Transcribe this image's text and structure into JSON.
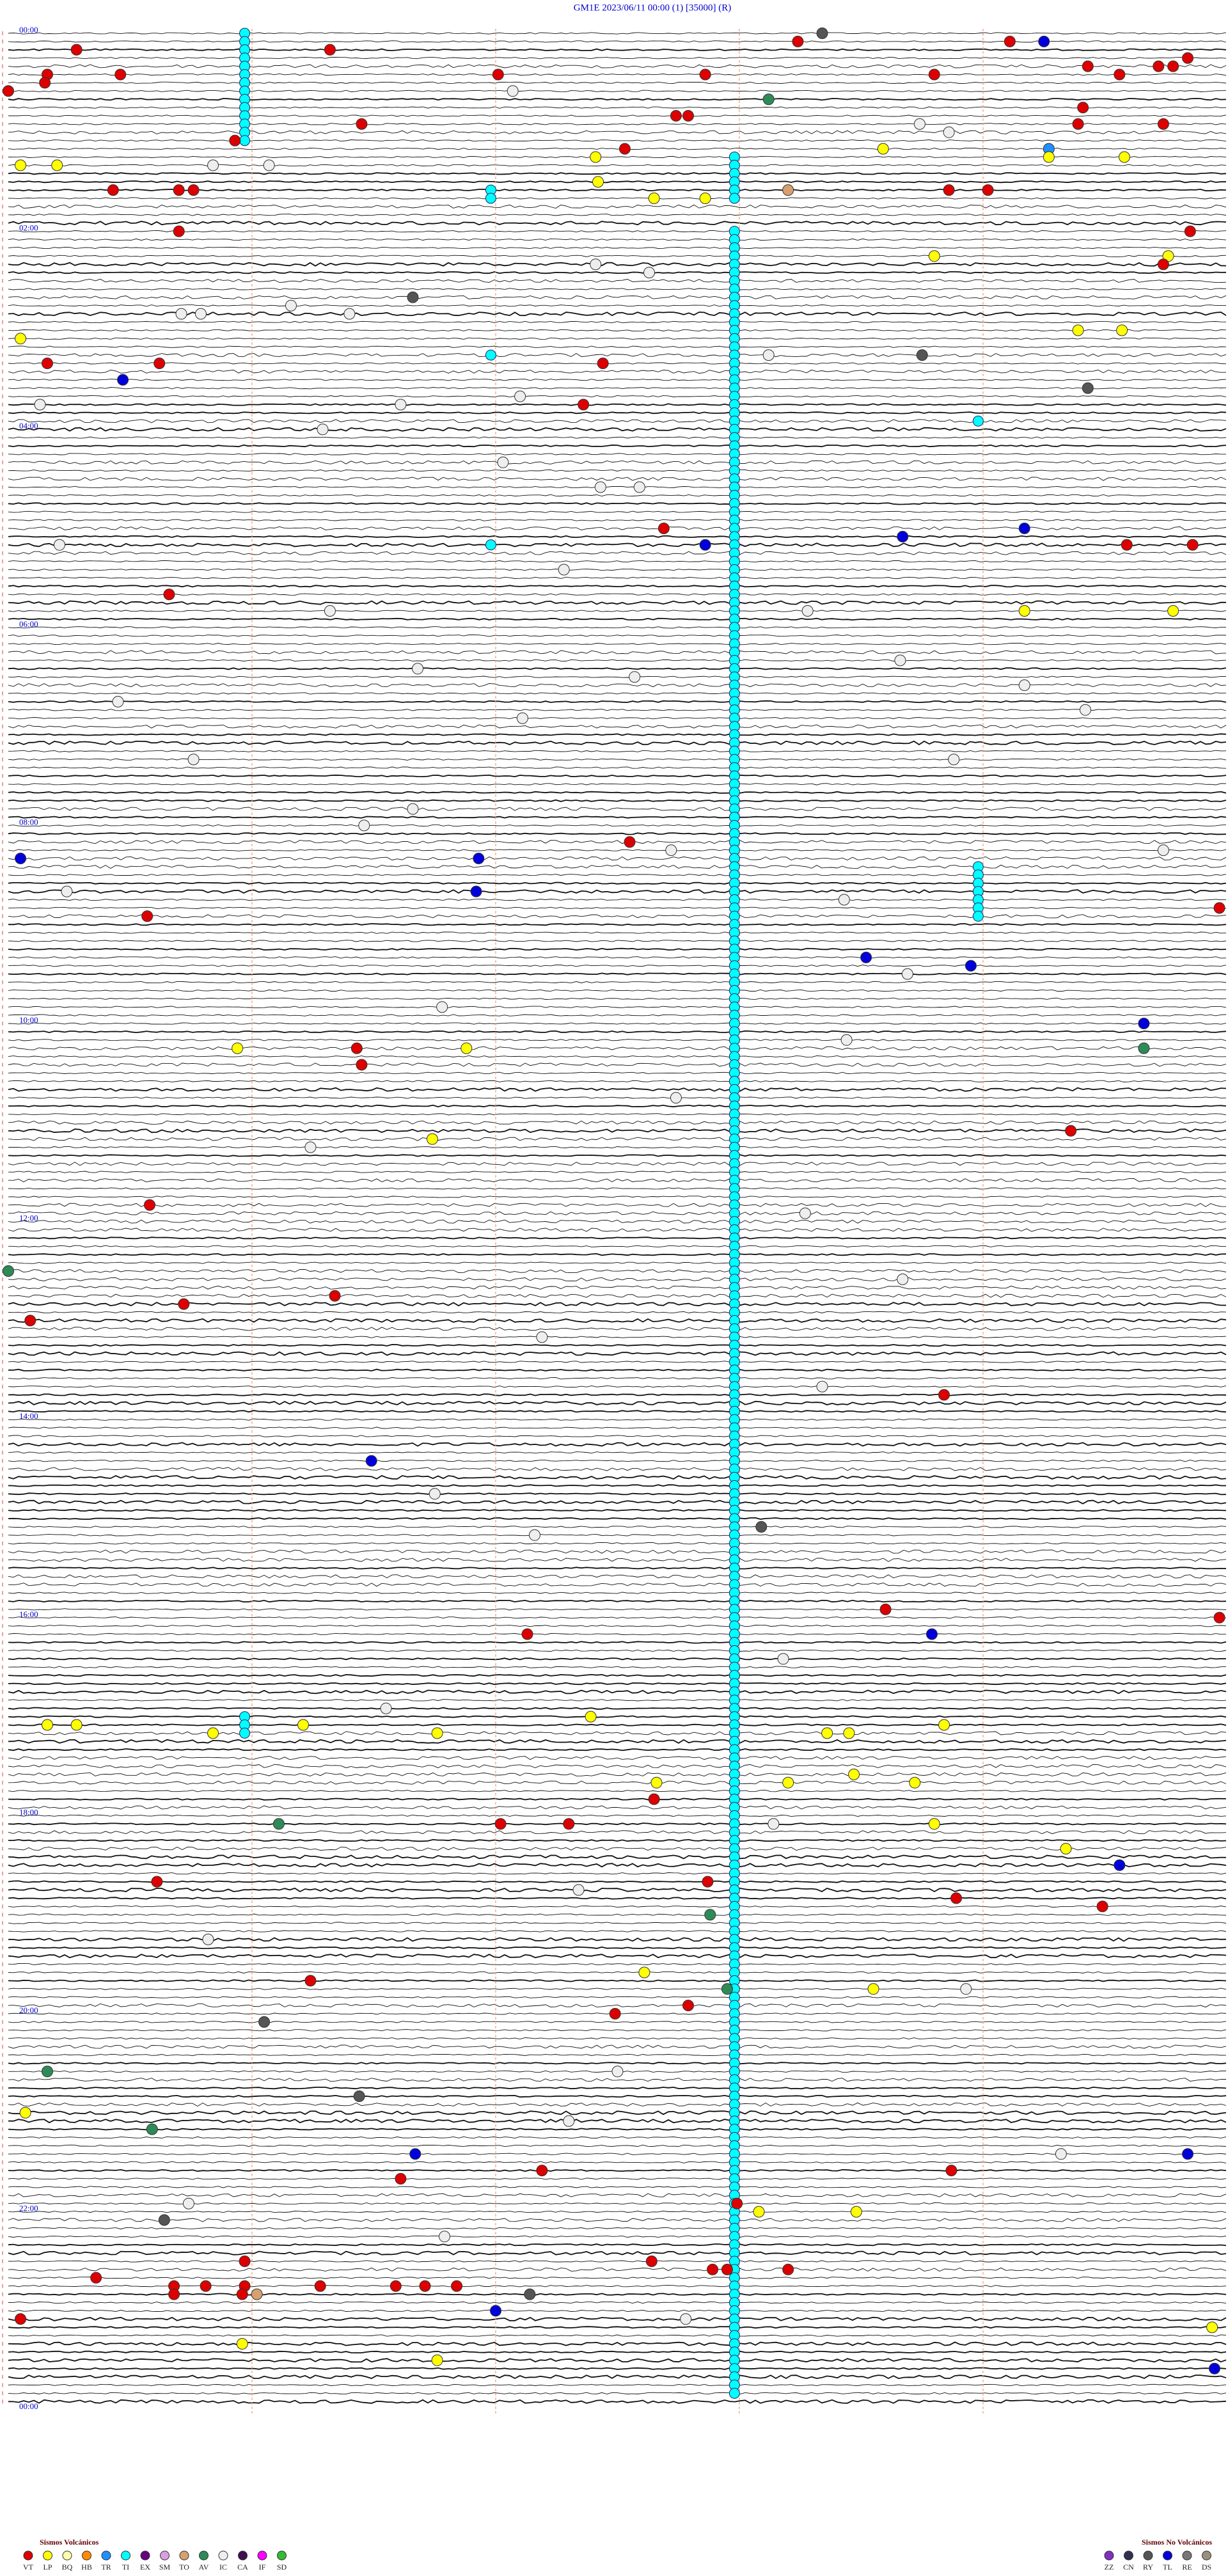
{
  "chart_data": {
    "type": "helicorder",
    "title": "GM1E     2023/06/11 00:00     (1)     [35000]   (R)",
    "hour_labels": [
      "00:00",
      "02:00",
      "04:00",
      "06:00",
      "08:00",
      "10:00",
      "12:00",
      "14:00",
      "16:00",
      "18:00",
      "20:00",
      "22:00",
      "00:00"
    ],
    "legend": {
      "volcanic": {
        "title": "Sismos Volcánicos",
        "items": [
          {
            "code": "VT",
            "color": "#dd0000"
          },
          {
            "code": "LP",
            "color": "#ffff00"
          },
          {
            "code": "BQ",
            "color": "#ffffb0"
          },
          {
            "code": "HB",
            "color": "#ff8c00"
          },
          {
            "code": "TR",
            "color": "#1e90ff"
          },
          {
            "code": "TI",
            "color": "#00ffff"
          },
          {
            "code": "EX",
            "color": "#6a0080"
          },
          {
            "code": "SM",
            "color": "#d8a0e0"
          },
          {
            "code": "TO",
            "color": "#d8a070"
          },
          {
            "code": "AV",
            "color": "#2e8b57"
          },
          {
            "code": "IC",
            "color": "#eeeeee"
          },
          {
            "code": "CA",
            "color": "#401050"
          },
          {
            "code": "IF",
            "color": "#ff00ff"
          },
          {
            "code": "SD",
            "color": "#33bb33"
          }
        ]
      },
      "non_volcanic": {
        "title": "Sismos No Volcánicos",
        "items": [
          {
            "code": "ZZ",
            "color": "#8030c0"
          },
          {
            "code": "CN",
            "color": "#303050"
          },
          {
            "code": "RY",
            "color": "#555555"
          },
          {
            "code": "TL",
            "color": "#0000dd"
          },
          {
            "code": "RE",
            "color": "#777777"
          },
          {
            "code": "DS",
            "color": "#999080"
          }
        ]
      }
    },
    "tremor": [
      [
        0,
        13,
        0.97
      ],
      [
        15,
        20,
        2.98
      ],
      [
        24,
        286,
        2.98
      ],
      [
        19,
        20,
        1.98
      ],
      [
        39,
        39,
        1.98
      ],
      [
        62,
        62,
        1.98
      ],
      [
        47,
        47,
        3.98
      ],
      [
        101,
        107,
        3.98
      ],
      [
        204,
        206,
        0.97
      ]
    ],
    "events": [
      [
        0,
        3.34,
        "RY"
      ],
      [
        1,
        3.24,
        "VT"
      ],
      [
        1,
        4.11,
        "VT"
      ],
      [
        1,
        4.25,
        "TL"
      ],
      [
        2,
        0.28,
        "VT"
      ],
      [
        2,
        1.32,
        "VT"
      ],
      [
        3,
        4.84,
        "VT"
      ],
      [
        4,
        4.43,
        "VT"
      ],
      [
        4,
        4.72,
        "VT"
      ],
      [
        4,
        4.78,
        "VT"
      ],
      [
        5,
        0.46,
        "VT"
      ],
      [
        5,
        2.01,
        "VT"
      ],
      [
        5,
        2.86,
        "VT"
      ],
      [
        5,
        3.8,
        "VT"
      ],
      [
        5,
        4.56,
        "VT"
      ],
      [
        5,
        0.16,
        "VT"
      ],
      [
        6,
        0.15,
        "VT"
      ],
      [
        7,
        0,
        "VT"
      ],
      [
        7,
        2.07,
        "IC"
      ],
      [
        8,
        3.12,
        "AV"
      ],
      [
        9,
        4.41,
        "VT"
      ],
      [
        10,
        2.74,
        "VT"
      ],
      [
        10,
        2.79,
        "VT"
      ],
      [
        11,
        1.45,
        "VT"
      ],
      [
        11,
        3.74,
        "IC"
      ],
      [
        11,
        4.39,
        "VT"
      ],
      [
        11,
        4.74,
        "VT"
      ],
      [
        12,
        3.86,
        "IC"
      ],
      [
        13,
        0.93,
        "VT"
      ],
      [
        14,
        2.53,
        "VT"
      ],
      [
        14,
        4.27,
        "TR"
      ],
      [
        15,
        2.41,
        "LP"
      ],
      [
        14,
        3.59,
        "LP"
      ],
      [
        15,
        4.27,
        "LP"
      ],
      [
        15,
        4.58,
        "LP"
      ],
      [
        16,
        0.05,
        "LP"
      ],
      [
        16,
        0.2,
        "LP"
      ],
      [
        16,
        0.84,
        "IC"
      ],
      [
        16,
        1.07,
        "IC"
      ],
      [
        18,
        2.42,
        "LP"
      ],
      [
        19,
        0.43,
        "VT"
      ],
      [
        19,
        0.7,
        "VT"
      ],
      [
        19,
        0.76,
        "VT"
      ],
      [
        19,
        3.86,
        "VT"
      ],
      [
        19,
        4.02,
        "VT"
      ],
      [
        19,
        3.2,
        "TO"
      ],
      [
        20,
        2.65,
        "LP"
      ],
      [
        20,
        2.86,
        "LP"
      ],
      [
        24,
        0.7,
        "VT"
      ],
      [
        24,
        4.85,
        "VT"
      ],
      [
        27,
        3.8,
        "LP"
      ],
      [
        27,
        4.76,
        "LP"
      ],
      [
        28,
        2.41,
        "IC"
      ],
      [
        28,
        4.74,
        "VT"
      ],
      [
        29,
        2.63,
        "IC"
      ],
      [
        32,
        1.66,
        "RY"
      ],
      [
        33,
        1.16,
        "IC"
      ],
      [
        34,
        0.71,
        "IC"
      ],
      [
        34,
        0.79,
        "IC"
      ],
      [
        34,
        1.4,
        "IC"
      ],
      [
        36,
        4.39,
        "LP"
      ],
      [
        36,
        4.57,
        "LP"
      ],
      [
        37,
        0.05,
        "LP"
      ],
      [
        39,
        3.12,
        "IC"
      ],
      [
        39,
        3.75,
        "RY"
      ],
      [
        40,
        0.16,
        "VT"
      ],
      [
        40,
        0.62,
        "VT"
      ],
      [
        40,
        2.44,
        "VT"
      ],
      [
        42,
        0.47,
        "TL"
      ],
      [
        43,
        4.43,
        "RY"
      ],
      [
        44,
        2.1,
        "IC"
      ],
      [
        45,
        2.36,
        "VT"
      ],
      [
        45,
        1.61,
        "IC"
      ],
      [
        45,
        0.13,
        "IC"
      ],
      [
        48,
        1.29,
        "IC"
      ],
      [
        52,
        2.03,
        "IC"
      ],
      [
        55,
        2.43,
        "IC"
      ],
      [
        55,
        2.59,
        "IC"
      ],
      [
        60,
        2.69,
        "VT"
      ],
      [
        61,
        3.67,
        "TL"
      ],
      [
        60,
        4.17,
        "TL"
      ],
      [
        62,
        2.86,
        "TL"
      ],
      [
        62,
        0.21,
        "IC"
      ],
      [
        62,
        4.59,
        "VT"
      ],
      [
        62,
        4.86,
        "VT"
      ],
      [
        65,
        2.28,
        "IC"
      ],
      [
        68,
        0.66,
        "VT"
      ],
      [
        70,
        4.17,
        "LP"
      ],
      [
        70,
        4.78,
        "LP"
      ],
      [
        70,
        1.32,
        "IC"
      ],
      [
        70,
        3.28,
        "IC"
      ],
      [
        76,
        3.66,
        "IC"
      ],
      [
        77,
        1.68,
        "IC"
      ],
      [
        78,
        2.57,
        "IC"
      ],
      [
        79,
        4.17,
        "IC"
      ],
      [
        81,
        0.45,
        "IC"
      ],
      [
        83,
        2.11,
        "IC"
      ],
      [
        82,
        4.42,
        "IC"
      ],
      [
        88,
        0.76,
        "IC"
      ],
      [
        88,
        3.88,
        "IC"
      ],
      [
        94,
        1.66,
        "IC"
      ],
      [
        96,
        1.46,
        "IC"
      ],
      [
        98,
        2.55,
        "VT"
      ],
      [
        99,
        2.72,
        "IC"
      ],
      [
        99,
        4.74,
        "IC"
      ],
      [
        100,
        1.93,
        "TL"
      ],
      [
        100,
        0.05,
        "TL"
      ],
      [
        104,
        1.92,
        "TL"
      ],
      [
        104,
        0.24,
        "IC"
      ],
      [
        105,
        3.43,
        "IC"
      ],
      [
        106,
        4.97,
        "VT"
      ],
      [
        107,
        0.57,
        "VT"
      ],
      [
        112,
        3.52,
        "TL"
      ],
      [
        113,
        3.95,
        "TL"
      ],
      [
        114,
        3.69,
        "IC"
      ],
      [
        118,
        1.78,
        "IC"
      ],
      [
        120,
        4.66,
        "TL"
      ],
      [
        122,
        3.44,
        "IC"
      ],
      [
        123,
        0.94,
        "LP"
      ],
      [
        123,
        1.88,
        "LP"
      ],
      [
        123,
        1.43,
        "VT"
      ],
      [
        125,
        1.45,
        "VT"
      ],
      [
        123,
        4.66,
        "AV"
      ],
      [
        129,
        2.74,
        "IC"
      ],
      [
        134,
        1.74,
        "LP"
      ],
      [
        133,
        4.36,
        "VT"
      ],
      [
        135,
        1.24,
        "IC"
      ],
      [
        142,
        0.58,
        "VT"
      ],
      [
        143,
        3.27,
        "IC"
      ],
      [
        150,
        0,
        "AV"
      ],
      [
        151,
        3.67,
        "IC"
      ],
      [
        154,
        0.72,
        "VT"
      ],
      [
        153,
        1.34,
        "VT"
      ],
      [
        156,
        0.09,
        "VT"
      ],
      [
        158,
        2.19,
        "IC"
      ],
      [
        164,
        3.34,
        "IC"
      ],
      [
        165,
        3.84,
        "VT"
      ],
      [
        173,
        1.49,
        "TL"
      ],
      [
        177,
        1.75,
        "IC"
      ],
      [
        181,
        3.09,
        "RY"
      ],
      [
        182,
        2.16,
        "IC"
      ],
      [
        194,
        2.13,
        "VT"
      ],
      [
        191,
        3.6,
        "VT"
      ],
      [
        194,
        3.79,
        "TL"
      ],
      [
        192,
        4.97,
        "VT"
      ],
      [
        197,
        3.18,
        "IC"
      ],
      [
        203,
        1.55,
        "IC"
      ],
      [
        205,
        0.16,
        "LP"
      ],
      [
        205,
        0.28,
        "LP"
      ],
      [
        206,
        0.84,
        "LP"
      ],
      [
        205,
        1.21,
        "LP"
      ],
      [
        206,
        1.76,
        "LP"
      ],
      [
        204,
        2.39,
        "LP"
      ],
      [
        206,
        3.36,
        "LP"
      ],
      [
        206,
        3.45,
        "LP"
      ],
      [
        205,
        3.84,
        "LP"
      ],
      [
        212,
        2.66,
        "LP"
      ],
      [
        212,
        3.2,
        "LP"
      ],
      [
        211,
        3.47,
        "LP"
      ],
      [
        212,
        3.72,
        "LP"
      ],
      [
        214,
        2.65,
        "VT"
      ],
      [
        217,
        1.11,
        "AV"
      ],
      [
        217,
        2.02,
        "VT"
      ],
      [
        217,
        2.3,
        "VT"
      ],
      [
        217,
        3.8,
        "LP"
      ],
      [
        217,
        3.14,
        "IC"
      ],
      [
        220,
        4.34,
        "LP"
      ],
      [
        222,
        4.56,
        "TL"
      ],
      [
        224,
        0.61,
        "VT"
      ],
      [
        224,
        2.87,
        "VT"
      ],
      [
        225,
        2.34,
        "IC"
      ],
      [
        226,
        3.89,
        "VT"
      ],
      [
        227,
        4.49,
        "VT"
      ],
      [
        228,
        2.88,
        "AV"
      ],
      [
        231,
        0.82,
        "IC"
      ],
      [
        235,
        2.61,
        "LP"
      ],
      [
        237,
        2.95,
        "AV"
      ],
      [
        237,
        3.55,
        "LP"
      ],
      [
        236,
        1.24,
        "VT"
      ],
      [
        237,
        3.93,
        "IC"
      ],
      [
        239,
        2.79,
        "VT"
      ],
      [
        240,
        2.49,
        "VT"
      ],
      [
        241,
        1.05,
        "RY"
      ],
      [
        247,
        0.16,
        "AV"
      ],
      [
        247,
        2.5,
        "IC"
      ],
      [
        250,
        1.44,
        "RY"
      ],
      [
        252,
        0.07,
        "LP"
      ],
      [
        253,
        2.3,
        "IC"
      ],
      [
        254,
        0.59,
        "AV"
      ],
      [
        257,
        1.67,
        "TL"
      ],
      [
        257,
        4.84,
        "TL"
      ],
      [
        257,
        4.32,
        "IC"
      ],
      [
        259,
        2.19,
        "VT"
      ],
      [
        259,
        3.87,
        "VT"
      ],
      [
        260,
        1.61,
        "VT"
      ],
      [
        263,
        0.74,
        "IC"
      ],
      [
        263,
        2.99,
        "VT"
      ],
      [
        264,
        3.08,
        "LP"
      ],
      [
        264,
        3.48,
        "LP"
      ],
      [
        265,
        0.64,
        "RY"
      ],
      [
        267,
        1.79,
        "IC"
      ],
      [
        270,
        0.97,
        "VT"
      ],
      [
        270,
        2.64,
        "VT"
      ],
      [
        271,
        2.89,
        "VT"
      ],
      [
        271,
        2.95,
        "VT"
      ],
      [
        271,
        3.2,
        "VT"
      ],
      [
        272,
        0.36,
        "VT"
      ],
      [
        273,
        0.68,
        "VT"
      ],
      [
        273,
        0.81,
        "VT"
      ],
      [
        273,
        0.97,
        "VT"
      ],
      [
        273,
        1.28,
        "VT"
      ],
      [
        273,
        1.59,
        "VT"
      ],
      [
        273,
        1.71,
        "VT"
      ],
      [
        273,
        1.84,
        "VT"
      ],
      [
        274,
        0.68,
        "VT"
      ],
      [
        274,
        0.96,
        "VT"
      ],
      [
        274,
        1.02,
        "TO"
      ],
      [
        274,
        2.14,
        "RY"
      ],
      [
        276,
        2.0,
        "TL"
      ],
      [
        277,
        0.05,
        "VT"
      ],
      [
        277,
        2.78,
        "IC"
      ],
      [
        278,
        4.94,
        "LP"
      ],
      [
        280,
        0.96,
        "LP"
      ],
      [
        282,
        1.76,
        "LP"
      ],
      [
        283,
        4.95,
        "TL"
      ]
    ]
  }
}
